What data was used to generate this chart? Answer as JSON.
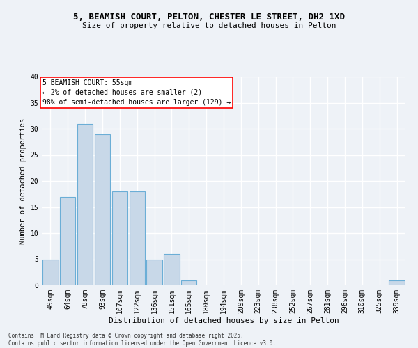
{
  "title_line1": "5, BEAMISH COURT, PELTON, CHESTER LE STREET, DH2 1XD",
  "title_line2": "Size of property relative to detached houses in Pelton",
  "xlabel": "Distribution of detached houses by size in Pelton",
  "ylabel": "Number of detached properties",
  "categories": [
    "49sqm",
    "64sqm",
    "78sqm",
    "93sqm",
    "107sqm",
    "122sqm",
    "136sqm",
    "151sqm",
    "165sqm",
    "180sqm",
    "194sqm",
    "209sqm",
    "223sqm",
    "238sqm",
    "252sqm",
    "267sqm",
    "281sqm",
    "296sqm",
    "310sqm",
    "325sqm",
    "339sqm"
  ],
  "values": [
    5,
    17,
    31,
    29,
    18,
    18,
    5,
    6,
    1,
    0,
    0,
    0,
    0,
    0,
    0,
    0,
    0,
    0,
    0,
    0,
    1
  ],
  "bar_color": "#c8d8e8",
  "bar_edge_color": "#6baed6",
  "annotation_text": "5 BEAMISH COURT: 55sqm\n← 2% of detached houses are smaller (2)\n98% of semi-detached houses are larger (129) →",
  "annotation_box_color": "white",
  "annotation_box_edge_color": "red",
  "ylim": [
    0,
    40
  ],
  "yticks": [
    0,
    5,
    10,
    15,
    20,
    25,
    30,
    35,
    40
  ],
  "footnote": "Contains HM Land Registry data © Crown copyright and database right 2025.\nContains public sector information licensed under the Open Government Licence v3.0.",
  "background_color": "#eef2f7",
  "grid_color": "white",
  "bar_linewidth": 0.8,
  "title1_fontsize": 9,
  "title2_fontsize": 8,
  "xlabel_fontsize": 8,
  "ylabel_fontsize": 7.5,
  "tick_fontsize": 7,
  "annot_fontsize": 7,
  "footnote_fontsize": 5.5
}
